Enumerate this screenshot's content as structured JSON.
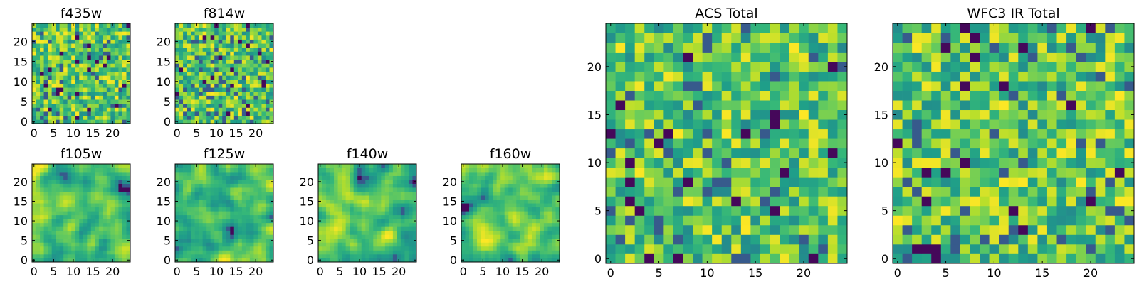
{
  "chart_data": [
    {
      "type": "heatmap",
      "title": "f435w",
      "colormap": "viridis",
      "grid": false,
      "size": [
        25,
        25
      ],
      "xlim": [
        0,
        24
      ],
      "ylim": [
        0,
        24
      ],
      "x_ticks": [
        "0",
        "5",
        "10",
        "15",
        "20"
      ],
      "y_ticks": [
        "0",
        "5",
        "10",
        "15",
        "20"
      ],
      "seed": 11,
      "vmin": 0,
      "vmax": 1,
      "noise": "uncorrelated"
    },
    {
      "type": "heatmap",
      "title": "f814w",
      "colormap": "viridis",
      "grid": false,
      "size": [
        25,
        25
      ],
      "xlim": [
        0,
        24
      ],
      "ylim": [
        0,
        24
      ],
      "x_ticks": [
        "0",
        "5",
        "10",
        "15",
        "20"
      ],
      "y_ticks": [
        "0",
        "5",
        "10",
        "15",
        "20"
      ],
      "seed": 23,
      "vmin": 0,
      "vmax": 1,
      "noise": "uncorrelated"
    },
    {
      "type": "heatmap",
      "title": "f105w",
      "colormap": "viridis",
      "grid": false,
      "size": [
        25,
        25
      ],
      "xlim": [
        0,
        24
      ],
      "ylim": [
        0,
        24
      ],
      "x_ticks": [
        "0",
        "5",
        "10",
        "15",
        "20"
      ],
      "y_ticks": [
        "0",
        "5",
        "10",
        "15",
        "20"
      ],
      "seed": 37,
      "vmin": 0,
      "vmax": 1,
      "noise": "smoothed"
    },
    {
      "type": "heatmap",
      "title": "f125w",
      "colormap": "viridis",
      "grid": false,
      "size": [
        25,
        25
      ],
      "xlim": [
        0,
        24
      ],
      "ylim": [
        0,
        24
      ],
      "x_ticks": [
        "0",
        "5",
        "10",
        "15",
        "20"
      ],
      "y_ticks": [
        "0",
        "5",
        "10",
        "15",
        "20"
      ],
      "seed": 41,
      "vmin": 0,
      "vmax": 1,
      "noise": "smoothed"
    },
    {
      "type": "heatmap",
      "title": "f140w",
      "colormap": "viridis",
      "grid": false,
      "size": [
        25,
        25
      ],
      "xlim": [
        0,
        24
      ],
      "ylim": [
        0,
        24
      ],
      "x_ticks": [
        "0",
        "5",
        "10",
        "15",
        "20"
      ],
      "y_ticks": [
        "0",
        "5",
        "10",
        "15",
        "20"
      ],
      "seed": 53,
      "vmin": 0,
      "vmax": 1,
      "noise": "smoothed"
    },
    {
      "type": "heatmap",
      "title": "f160w",
      "colormap": "viridis",
      "grid": false,
      "size": [
        25,
        25
      ],
      "xlim": [
        0,
        24
      ],
      "ylim": [
        0,
        24
      ],
      "x_ticks": [
        "0",
        "5",
        "10",
        "15",
        "20"
      ],
      "y_ticks": [
        "0",
        "5",
        "10",
        "15",
        "20"
      ],
      "seed": 67,
      "vmin": 0,
      "vmax": 1,
      "noise": "smoothed"
    },
    {
      "type": "heatmap",
      "title": "ACS Total",
      "colormap": "viridis",
      "grid": false,
      "size": [
        25,
        25
      ],
      "xlim": [
        0,
        24
      ],
      "ylim": [
        0,
        24
      ],
      "x_ticks": [
        "0",
        "5",
        "10",
        "15",
        "20"
      ],
      "y_ticks": [
        "0",
        "5",
        "10",
        "15",
        "20"
      ],
      "seed": 79,
      "vmin": 0,
      "vmax": 1,
      "noise": "uncorrelated"
    },
    {
      "type": "heatmap",
      "title": "WFC3 IR Total",
      "colormap": "viridis",
      "grid": false,
      "size": [
        25,
        25
      ],
      "xlim": [
        0,
        24
      ],
      "ylim": [
        0,
        24
      ],
      "x_ticks": [
        "0",
        "5",
        "10",
        "15",
        "20"
      ],
      "y_ticks": [
        "0",
        "5",
        "10",
        "15",
        "20"
      ],
      "seed": 97,
      "vmin": 0,
      "vmax": 1,
      "noise": "uncorrelated"
    }
  ]
}
